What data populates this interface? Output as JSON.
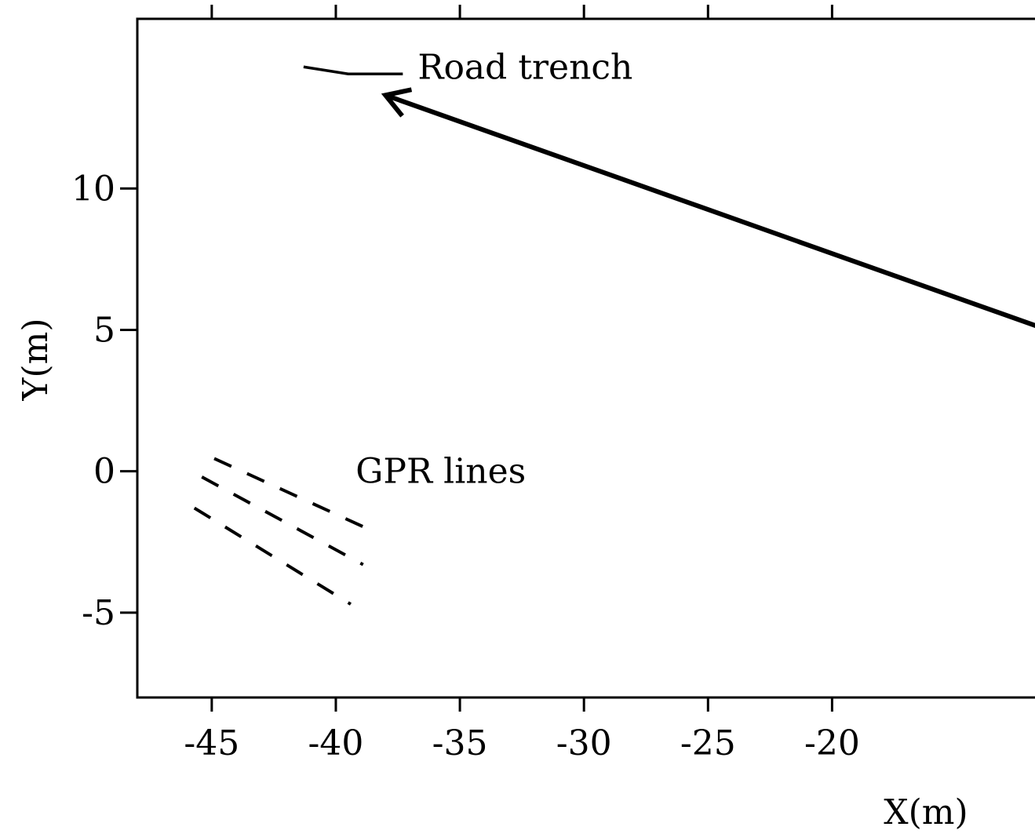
{
  "chart_data": {
    "type": "scatter",
    "xlabel": "X(m)",
    "ylabel": "Y(m)",
    "xlim": [
      -48,
      -11
    ],
    "ylim": [
      -8,
      16
    ],
    "x_ticks": [
      -45,
      -40,
      -35,
      -30,
      -25,
      -20
    ],
    "x_tick_labels": [
      "-45",
      "-40",
      "-35",
      "-30",
      "-25",
      "-20"
    ],
    "y_ticks": [
      -5,
      0,
      5,
      10
    ],
    "y_tick_labels": [
      "-5",
      "0",
      "5",
      "10"
    ],
    "grid": false,
    "series": [
      {
        "kind": "solid-line",
        "points": [
          [
            -41.3,
            14.3
          ],
          [
            -39.5,
            14.05
          ],
          [
            -37.3,
            14.05
          ]
        ]
      },
      {
        "kind": "dashed-line",
        "points": [
          [
            -44.9,
            0.45
          ],
          [
            -38.3,
            -2.2
          ]
        ]
      },
      {
        "kind": "dashed-line",
        "points": [
          [
            -45.4,
            -0.2
          ],
          [
            -38.9,
            -3.3
          ]
        ]
      },
      {
        "kind": "dashed-line",
        "points": [
          [
            -45.7,
            -1.3
          ],
          [
            -39.4,
            -4.7
          ]
        ]
      },
      {
        "kind": "arrow",
        "points": [
          [
            -11,
            4.9
          ],
          [
            -38,
            13.3
          ]
        ]
      }
    ],
    "annotations": [
      {
        "text": "Road trench",
        "x": -36.7,
        "y": 14.3
      },
      {
        "text": "GPR lines",
        "x": -39.2,
        "y": 0
      }
    ]
  }
}
